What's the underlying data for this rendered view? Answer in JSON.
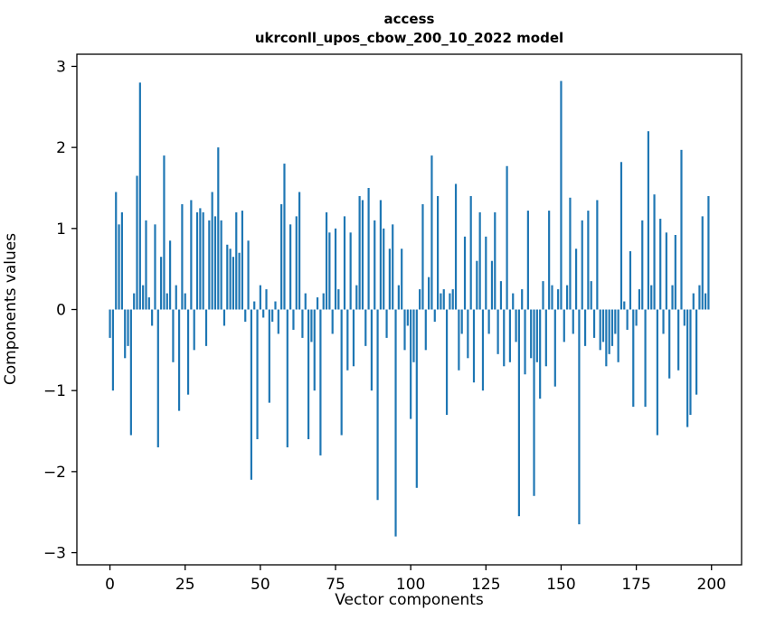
{
  "title_line1": "access",
  "title_line2": "ukrconll_upos_cbow_200_10_2022 model",
  "chart_data": {
    "type": "bar",
    "title": "access\nukrconll_upos_cbow_200_10_2022 model",
    "xlabel": "Vector components",
    "ylabel": "Components values",
    "xlim": [
      -11,
      210
    ],
    "ylim": [
      -3.15,
      3.15
    ],
    "x_ticks": [
      0,
      25,
      50,
      75,
      100,
      125,
      150,
      175,
      200
    ],
    "y_ticks": [
      -3,
      -2,
      -1,
      0,
      1,
      2,
      3
    ],
    "grid": false,
    "legend": "none",
    "bar_color": "#1f77b4",
    "n_components": 200,
    "values": [
      -0.35,
      -1.0,
      1.45,
      1.05,
      1.2,
      -0.6,
      -0.45,
      -1.55,
      0.2,
      1.65,
      2.8,
      0.3,
      1.1,
      0.15,
      -0.2,
      1.05,
      -1.7,
      0.65,
      1.9,
      0.2,
      0.85,
      -0.65,
      0.3,
      -1.25,
      1.3,
      0.2,
      -1.05,
      1.35,
      -0.5,
      1.2,
      1.25,
      1.2,
      -0.45,
      1.1,
      1.45,
      1.15,
      2.0,
      1.1,
      -0.2,
      0.8,
      0.75,
      0.65,
      1.2,
      0.7,
      1.22,
      -0.15,
      0.85,
      -2.1,
      0.1,
      -1.6,
      0.3,
      -0.1,
      0.25,
      -1.15,
      -0.15,
      0.1,
      -0.3,
      1.3,
      1.8,
      -1.7,
      1.05,
      -0.25,
      1.15,
      1.45,
      -0.35,
      0.2,
      -1.6,
      -0.4,
      -1.0,
      0.15,
      -1.8,
      0.2,
      1.2,
      0.95,
      -0.3,
      1.0,
      0.25,
      -1.55,
      1.15,
      -0.75,
      0.95,
      -0.7,
      0.3,
      1.4,
      1.35,
      -0.45,
      1.5,
      -1.0,
      1.1,
      -2.35,
      1.35,
      1.0,
      -0.35,
      0.75,
      1.05,
      -2.8,
      0.3,
      0.75,
      -0.5,
      -0.2,
      -1.35,
      -0.65,
      -2.2,
      0.25,
      1.3,
      -0.5,
      0.4,
      1.9,
      -0.15,
      1.4,
      0.2,
      0.25,
      -1.3,
      0.2,
      0.25,
      1.55,
      -0.75,
      -0.3,
      0.9,
      -0.6,
      1.4,
      -0.9,
      0.6,
      1.2,
      -1.0,
      0.9,
      -0.3,
      0.6,
      1.2,
      -0.55,
      0.35,
      -0.7,
      1.77,
      -0.65,
      0.2,
      -0.4,
      -2.55,
      0.25,
      -0.8,
      1.22,
      -0.6,
      -2.3,
      -0.65,
      -1.1,
      0.35,
      -0.7,
      1.22,
      0.3,
      -0.95,
      0.25,
      2.82,
      -0.4,
      0.3,
      1.38,
      -0.3,
      0.75,
      -2.65,
      1.1,
      -0.45,
      1.22,
      0.35,
      -0.35,
      1.35,
      -0.5,
      -0.4,
      -0.7,
      -0.55,
      -0.45,
      -0.3,
      -0.65,
      1.82,
      0.1,
      -0.25,
      0.72,
      -1.2,
      -0.2,
      0.25,
      1.1,
      -1.2,
      2.2,
      0.3,
      1.42,
      -1.55,
      1.12,
      -0.3,
      0.95,
      -0.85,
      0.3,
      0.92,
      -0.75,
      1.97,
      -0.2,
      -1.45,
      -1.3,
      0.2,
      -1.05,
      0.3,
      1.15,
      0.2,
      1.4
    ]
  }
}
